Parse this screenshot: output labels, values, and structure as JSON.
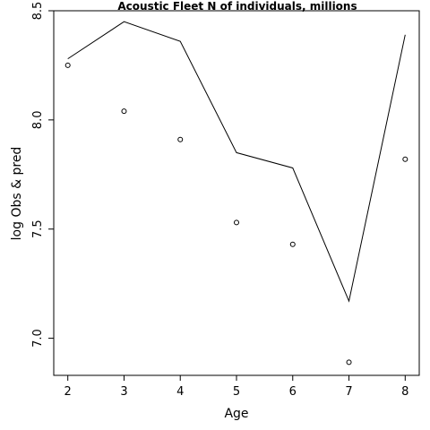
{
  "chart_data": {
    "type": "line",
    "title": "Acoustic Fleet   N of individuals, millions",
    "xlabel": "Age",
    "ylabel": "log Obs & pred",
    "x_ticks": [
      "2",
      "3",
      "4",
      "5",
      "6",
      "7",
      "8"
    ],
    "y_ticks": [
      "7.0",
      "7.5",
      "8.0",
      "8.5"
    ],
    "xlim": [
      1.75,
      8.25
    ],
    "ylim": [
      6.83,
      8.5
    ],
    "series": [
      {
        "style": "line",
        "x": [
          2,
          3,
          4,
          5,
          6,
          7,
          8
        ],
        "y": [
          8.28,
          8.45,
          8.36,
          7.85,
          7.78,
          7.17,
          8.39
        ]
      },
      {
        "style": "points",
        "x": [
          2,
          3,
          4,
          5,
          6,
          7,
          8
        ],
        "y": [
          8.25,
          8.04,
          7.91,
          7.53,
          7.43,
          6.89,
          7.82
        ]
      }
    ],
    "grid": false
  }
}
